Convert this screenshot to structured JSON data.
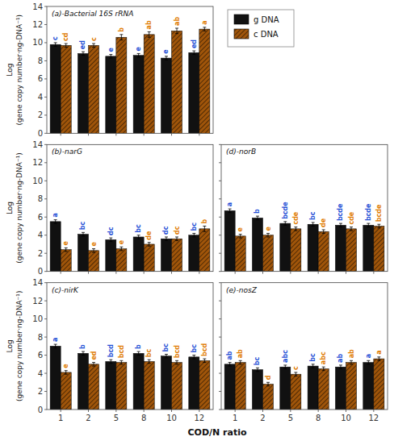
{
  "chart_data": [
    {
      "type": "bar",
      "title": "(a)-Bacterial 16S rRNA",
      "ylabel": "Log\n(gene copy number·ng-DNA⁻¹)",
      "categories": [
        "1",
        "2",
        "5",
        "8",
        "10",
        "12"
      ],
      "series": [
        {
          "name": "g DNA",
          "color": "#111111",
          "values": [
            9.8,
            8.8,
            8.5,
            8.6,
            8.3,
            8.9
          ],
          "errors": [
            0.2,
            0.2,
            0.2,
            0.2,
            0.2,
            0.2
          ],
          "annotations": [
            "c",
            "ed",
            "e",
            "e",
            "e",
            "ed"
          ]
        },
        {
          "name": "c DNA",
          "color": "#a0550a",
          "values": [
            9.7,
            9.7,
            10.6,
            10.9,
            11.3,
            11.5
          ],
          "errors": [
            0.2,
            0.2,
            0.3,
            0.3,
            0.3,
            0.2
          ],
          "annotations": [
            "cd",
            "c",
            "b",
            "ab",
            "ab",
            "a"
          ]
        }
      ],
      "ylim": [
        0,
        14
      ],
      "yticks": [
        0,
        2,
        4,
        6,
        8,
        10,
        12,
        14
      ],
      "grid": false,
      "tick_labels": "y",
      "legend": "right"
    },
    {
      "type": "bar",
      "title": "(b)-narG",
      "ylabel": "Log\n(gene copy number·ng-DNA⁻¹)",
      "categories": [
        "1",
        "2",
        "5",
        "8",
        "10",
        "12"
      ],
      "series": [
        {
          "name": "g DNA",
          "color": "#111111",
          "values": [
            5.5,
            4.1,
            3.5,
            3.8,
            3.6,
            4.0
          ],
          "errors": [
            0.2,
            0.2,
            0.2,
            0.2,
            0.2,
            0.2
          ],
          "annotations": [
            "a",
            "bc",
            "dc",
            "bc",
            "dc",
            "bc"
          ]
        },
        {
          "name": "c DNA",
          "color": "#a0550a",
          "values": [
            2.4,
            2.3,
            2.5,
            3.0,
            3.6,
            4.7
          ],
          "errors": [
            0.2,
            0.2,
            0.2,
            0.2,
            0.2,
            0.3
          ],
          "annotations": [
            "e",
            "e",
            "e",
            "de",
            "dc",
            "b"
          ]
        }
      ],
      "ylim": [
        0,
        14
      ],
      "yticks": [
        0,
        2,
        4,
        6,
        8,
        10,
        12,
        14
      ],
      "grid": false,
      "tick_labels": "y"
    },
    {
      "type": "bar",
      "title": "(c)-nirK",
      "ylabel": "Log\n(gene copy number·ng-DNA⁻¹)",
      "xlabel": "COD/N ratio",
      "categories": [
        "1",
        "2",
        "5",
        "8",
        "10",
        "12"
      ],
      "series": [
        {
          "name": "g DNA",
          "color": "#111111",
          "values": [
            7.0,
            6.2,
            5.3,
            6.2,
            5.9,
            5.8
          ],
          "errors": [
            0.2,
            0.2,
            0.2,
            0.2,
            0.2,
            0.2
          ],
          "annotations": [
            "a",
            "b",
            "bcd",
            "b",
            "bc",
            "bc"
          ]
        },
        {
          "name": "c DNA",
          "color": "#a0550a",
          "values": [
            4.1,
            5.0,
            5.2,
            5.3,
            5.2,
            5.4
          ],
          "errors": [
            0.2,
            0.2,
            0.2,
            0.2,
            0.2,
            0.2
          ],
          "annotations": [
            "e",
            "ed",
            "bcd",
            "bc",
            "bcd",
            "bcd"
          ]
        }
      ],
      "ylim": [
        0,
        14
      ],
      "yticks": [
        0,
        2,
        4,
        6,
        8,
        10,
        12,
        14
      ],
      "grid": false,
      "tick_labels": true
    },
    {
      "type": "bar",
      "title": "(d)-norB",
      "categories": [
        "1",
        "2",
        "5",
        "8",
        "10",
        "12"
      ],
      "series": [
        {
          "name": "g DNA",
          "color": "#111111",
          "values": [
            6.7,
            5.9,
            5.3,
            5.2,
            5.1,
            5.1
          ],
          "errors": [
            0.2,
            0.2,
            0.2,
            0.2,
            0.2,
            0.2
          ],
          "annotations": [
            "a",
            "b",
            "bcde",
            "bc",
            "bcde",
            "bcde"
          ]
        },
        {
          "name": "c DNA",
          "color": "#a0550a",
          "values": [
            3.9,
            4.0,
            4.7,
            4.4,
            4.7,
            5.0
          ],
          "errors": [
            0.2,
            0.2,
            0.2,
            0.2,
            0.2,
            0.2
          ],
          "annotations": [
            "e",
            "e",
            "cde",
            "de",
            "cde",
            "bcde"
          ]
        }
      ],
      "ylim": [
        0,
        14
      ],
      "yticks": [
        0,
        2,
        4,
        6,
        8,
        10,
        12,
        14
      ],
      "grid": false,
      "tick_labels": false
    },
    {
      "type": "bar",
      "title": "(e)-nosZ",
      "categories": [
        "1",
        "2",
        "5",
        "8",
        "10",
        "12"
      ],
      "series": [
        {
          "name": "g DNA",
          "color": "#111111",
          "values": [
            5.0,
            4.4,
            4.7,
            4.8,
            4.7,
            5.2
          ],
          "errors": [
            0.2,
            0.2,
            0.2,
            0.2,
            0.2,
            0.2
          ],
          "annotations": [
            "ab",
            "bc",
            "abc",
            "bc",
            "ab",
            "a"
          ]
        },
        {
          "name": "c DNA",
          "color": "#a0550a",
          "values": [
            5.2,
            2.8,
            3.9,
            4.5,
            5.2,
            5.6
          ],
          "errors": [
            0.2,
            0.2,
            0.2,
            0.2,
            0.2,
            0.2
          ],
          "annotations": [
            "ab",
            "d",
            "c",
            "abc",
            "ab",
            "a"
          ]
        }
      ],
      "ylim": [
        0,
        14
      ],
      "yticks": [
        0,
        2,
        4,
        6,
        8,
        10,
        12,
        14
      ],
      "grid": false,
      "tick_labels": "x"
    }
  ]
}
